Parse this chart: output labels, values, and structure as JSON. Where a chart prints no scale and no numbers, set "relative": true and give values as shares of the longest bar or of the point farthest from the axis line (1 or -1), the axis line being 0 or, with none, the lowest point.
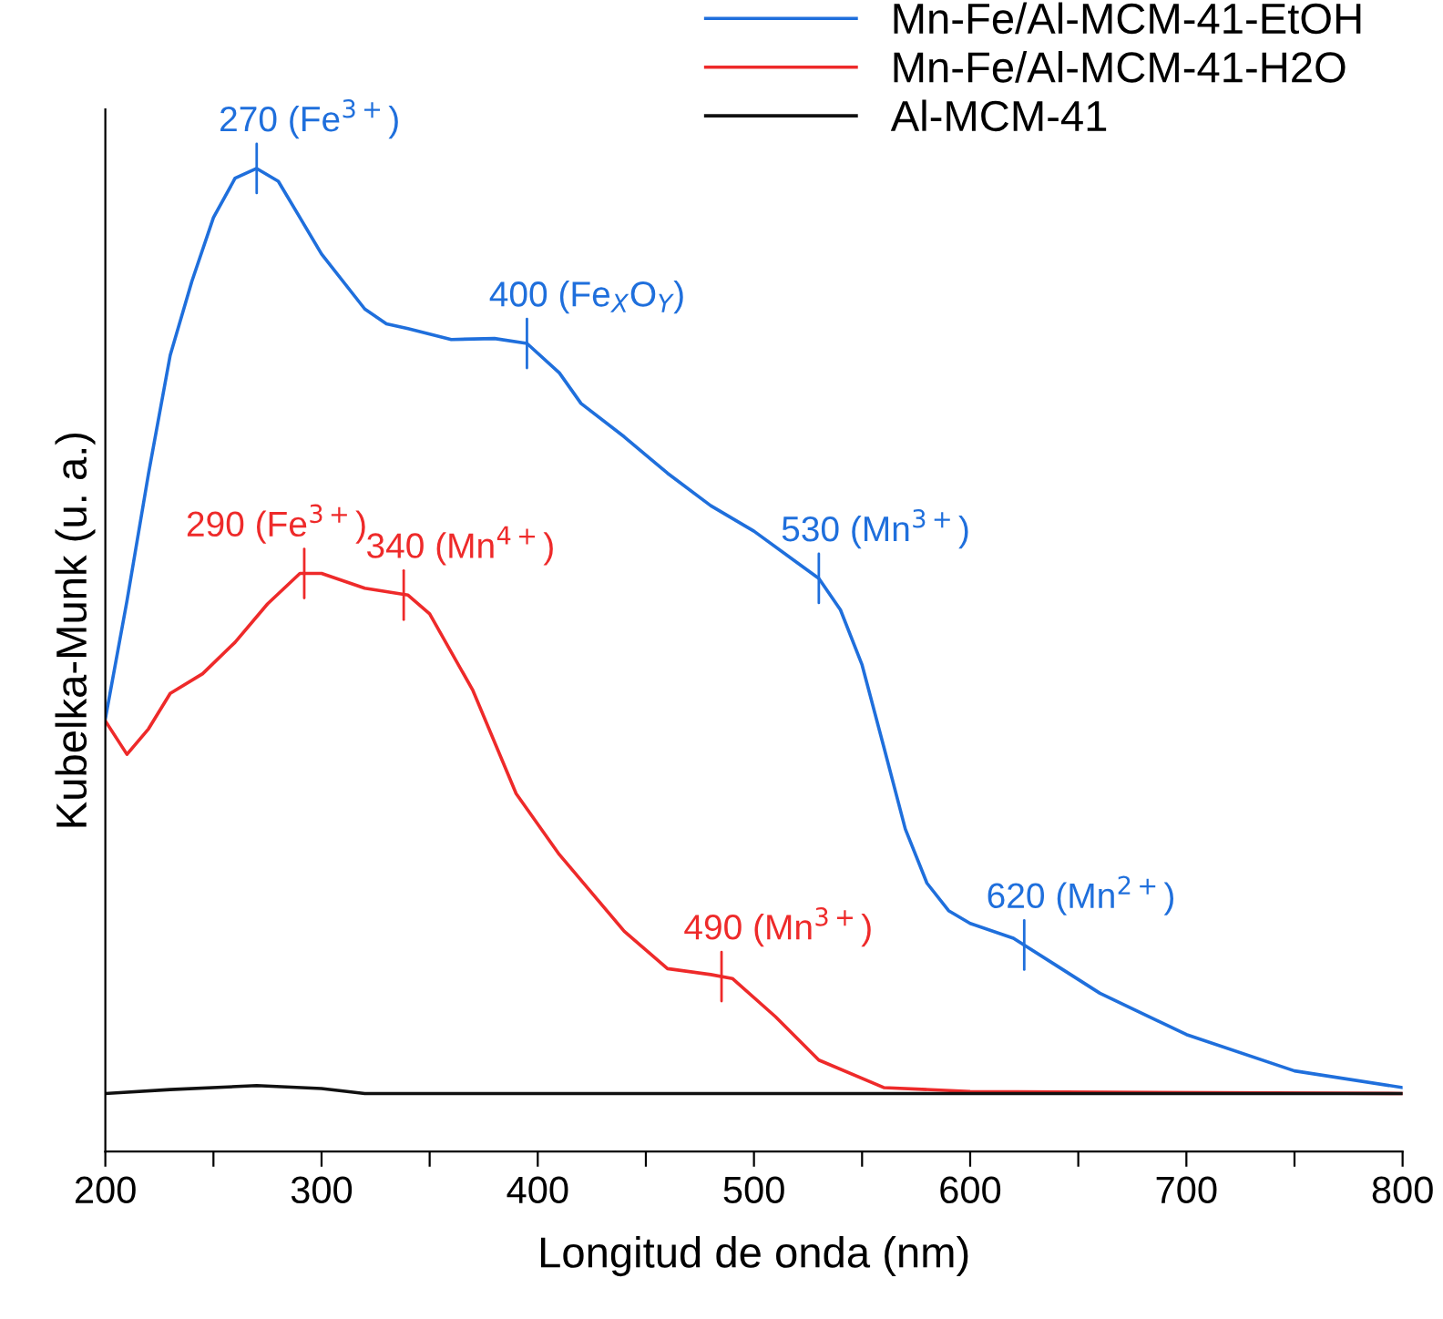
{
  "chart_data": {
    "type": "line",
    "relative": true,
    "xlabel": "Longitud de onda (nm)",
    "ylabel": "Kubelka-Munk (u. a.)",
    "xlim": [
      200,
      800
    ],
    "xticks": [
      200,
      {
        "value": 250,
        "label": null
      },
      300,
      {
        "value": 350,
        "label": null
      },
      400,
      {
        "value": 450,
        "label": null
      },
      500,
      {
        "value": 550,
        "label": null
      },
      600,
      {
        "value": 650,
        "label": null
      },
      700,
      {
        "value": 750,
        "label": null
      },
      800
    ],
    "legend": "top right",
    "grid": false,
    "marker": "none",
    "line_style": "solid",
    "series": [
      {
        "name": "Mn-Fe/Al-MCM-41-EtOH",
        "color": "#1f6fdc",
        "x": [
          200,
          210,
          220,
          230,
          240,
          250,
          260,
          270,
          280,
          290,
          300,
          320,
          330,
          340,
          360,
          380,
          395,
          410,
          420,
          440,
          460,
          480,
          500,
          520,
          530,
          540,
          550,
          560,
          570,
          580,
          590,
          600,
          620,
          640,
          660,
          700,
          750,
          800
        ],
        "values": [
          0.44,
          0.56,
          0.69,
          0.81,
          0.885,
          0.95,
          0.99,
          1.0,
          0.987,
          0.95,
          0.913,
          0.857,
          0.842,
          0.837,
          0.826,
          0.827,
          0.822,
          0.792,
          0.761,
          0.727,
          0.69,
          0.657,
          0.631,
          0.599,
          0.583,
          0.551,
          0.495,
          0.412,
          0.328,
          0.273,
          0.245,
          0.232,
          0.217,
          0.189,
          0.161,
          0.119,
          0.082,
          0.065
        ]
      },
      {
        "name": "Mn-Fe/Al-MCM-41-H2O",
        "color": "#ee2a2a",
        "x": [
          200,
          210,
          220,
          230,
          245,
          260,
          275,
          290,
          300,
          320,
          340,
          350,
          370,
          390,
          410,
          440,
          460,
          480,
          490,
          510,
          530,
          560,
          600,
          800
        ],
        "values": [
          0.438,
          0.404,
          0.43,
          0.466,
          0.486,
          0.518,
          0.557,
          0.588,
          0.588,
          0.573,
          0.566,
          0.547,
          0.469,
          0.364,
          0.302,
          0.224,
          0.186,
          0.18,
          0.176,
          0.137,
          0.093,
          0.065,
          0.061,
          0.059
        ]
      },
      {
        "name": "Al-MCM-41",
        "color": "#111111",
        "x": [
          200,
          230,
          270,
          300,
          320,
          800
        ],
        "values": [
          0.059,
          0.063,
          0.067,
          0.064,
          0.059,
          0.059
        ]
      }
    ],
    "annotations": [
      {
        "text": "270 (Fe$^{3+}$)",
        "x": 270,
        "y": 1.0
      },
      {
        "text": "400 (Fe$_{X}$O$_{Y}$)",
        "x": 395,
        "y": 0.822
      },
      {
        "text": "530 (Mn$^{3+}$)",
        "x": 530,
        "y": 0.583
      },
      {
        "text": "620 (Mn$^{2+}$)",
        "x": 625,
        "y": 0.21
      },
      {
        "text": "290 (Fe$^{3+}$)",
        "x": 292,
        "y": 0.588
      },
      {
        "text": "340 (Mn$^{4+}$)",
        "x": 338,
        "y": 0.566
      },
      {
        "text": "490 (Mn$^{3+}$)",
        "x": 485,
        "y": 0.178
      }
    ]
  }
}
